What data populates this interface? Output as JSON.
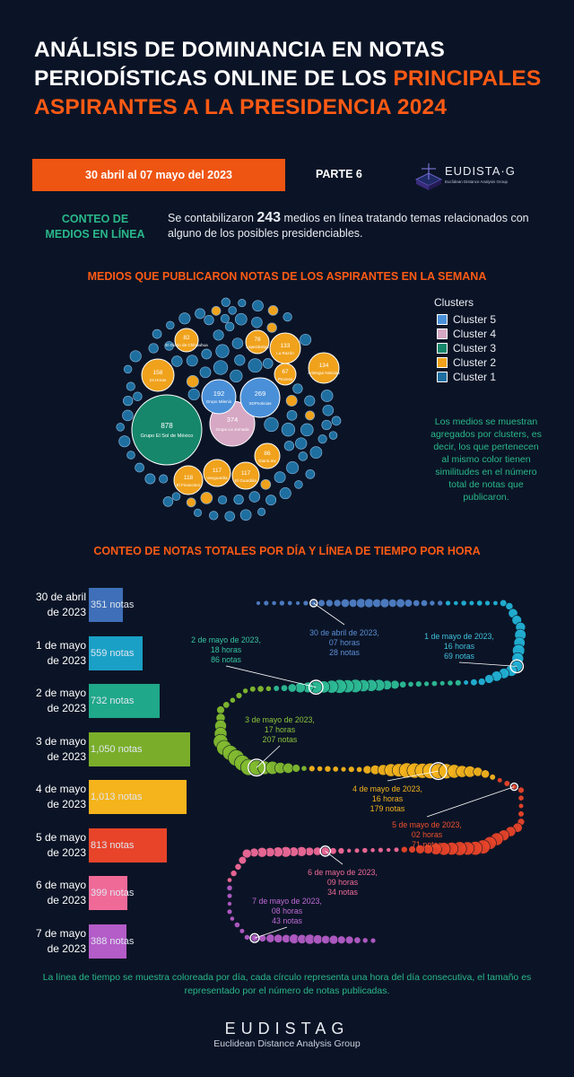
{
  "header": {
    "title_line1": "ANÁLISIS DE DOMINANCIA EN NOTAS",
    "title_line2_white": "PERIODÍSTICAS ONLINE DE LOS ",
    "title_line2_orange": "PRINCIPALES",
    "title_line3": "ASPIRANTES A LA PRESIDENCIA 2024",
    "date_range": "30 abril al 07 mayo del 2023",
    "part": "PARTE 6",
    "logo_name": "EUDISTA·G",
    "logo_sub": "Euclidean Distance Analysis Group"
  },
  "conteo": {
    "heading": "CONTEO DE MEDIOS EN LÍNEA",
    "text_before": "Se contabilizaron ",
    "count": "243",
    "text_after": " medios en línea tratando temas relacionados con alguno de los posibles presidenciables."
  },
  "colors": {
    "cluster1": "#1e6fa0",
    "cluster2": "#f0a21c",
    "cluster3": "#16876b",
    "cluster4": "#d6a8c4",
    "cluster5": "#4a90d9",
    "orange": "#ff5a14",
    "green_text": "#29b88a"
  },
  "bubble_section": {
    "title": "MEDIOS QUE PUBLICARON NOTAS DE LOS ASPIRANTES EN LA SEMANA",
    "legend_title": "Clusters",
    "legend": [
      {
        "label": "Cluster 5",
        "color": "#4a90d9"
      },
      {
        "label": "Cluster 4",
        "color": "#d6a8c4"
      },
      {
        "label": "Cluster 3",
        "color": "#16876b"
      },
      {
        "label": "Cluster 2",
        "color": "#f0a21c"
      },
      {
        "label": "Cluster 1",
        "color": "#1e6fa0"
      }
    ],
    "note": "Los medios se muestran agregados por clusters, es decir, los que pertenecen al mismo color tienen similitudes en el número total de notas que publicaron."
  },
  "timeline_section": {
    "title": "CONTEO DE NOTAS TOTALES POR DÍA Y LÍNEA DE TIEMPO POR HORA",
    "note": "La línea de tiempo se muestra coloreada por día, cada círculo representa una hora del día consecutiva, el tamaño es representado por el número de notas publicadas."
  },
  "footer": {
    "brand": "EUDISTAG",
    "brand_sub": "Euclidean Distance Analysis Group"
  },
  "chart_data": [
    {
      "type": "bubble",
      "title": "MEDIOS QUE PUBLICARON NOTAS DE LOS ASPIRANTES EN LA SEMANA",
      "series": [
        {
          "name": "Grupo El Sol de México",
          "value": 878,
          "cluster": 3
        },
        {
          "name": "Grupo La Jornada",
          "value": 374,
          "cluster": 4
        },
        {
          "name": "SDPnoticias",
          "value": 269,
          "cluster": 5
        },
        {
          "name": "Grupo Milenio",
          "value": 192,
          "cluster": 5
        },
        {
          "name": "24 Horas",
          "value": 158,
          "cluster": 2
        },
        {
          "name": "Aristegui Noticias",
          "value": 134,
          "cluster": 2
        },
        {
          "name": "La Razón",
          "value": 133,
          "cluster": 2
        },
        {
          "name": "El Financiero",
          "value": 118,
          "cluster": 2
        },
        {
          "name": "Vanguardia",
          "value": 117,
          "cluster": 2
        },
        {
          "name": "El Guardián",
          "value": 117,
          "cluster": 2
        },
        {
          "name": "Diario.mx",
          "value": 86,
          "cluster": 2
        },
        {
          "name": "El Diario de Chihuahua",
          "value": 82,
          "cluster": 2
        },
        {
          "name": "Lopezdoriga",
          "value": 78,
          "cluster": 2
        },
        {
          "name": "Proceso",
          "value": 67,
          "cluster": 2
        }
      ]
    },
    {
      "type": "bar",
      "orientation": "horizontal",
      "categories": [
        "30 de abril de 2023",
        "1 de mayo de 2023",
        "2 de mayo de 2023",
        "3 de mayo de 2023",
        "4 de mayo de 2023",
        "5 de mayo de 2023",
        "6 de mayo de 2023",
        "7 de mayo de 2023"
      ],
      "values": [
        351,
        559,
        732,
        1050,
        1013,
        813,
        399,
        388
      ],
      "value_labels": [
        "351 notas",
        "559 notas",
        "732 notas",
        "1,050 notas",
        "1,013 notas",
        "813 notas",
        "399 notas",
        "388 notas"
      ],
      "colors": [
        "#3f6fb8",
        "#1aa0c6",
        "#1fa889",
        "#7aae2a",
        "#f5b41c",
        "#e8442a",
        "#f06a98",
        "#b45cc8"
      ],
      "label_lines": [
        [
          "30 de abril",
          "de 2023"
        ],
        [
          "1 de mayo",
          "de 2023"
        ],
        [
          "2 de mayo",
          "de 2023"
        ],
        [
          "3 de mayo",
          "de 2023"
        ],
        [
          "4 de mayo",
          "de 2023"
        ],
        [
          "5 de mayo",
          "de 2023"
        ],
        [
          "6 de mayo",
          "de 2023"
        ],
        [
          "7 de mayo",
          "de 2023"
        ]
      ]
    },
    {
      "type": "timeline",
      "annotations": [
        {
          "lines": [
            "30 de abril de 2023,",
            "07 horas",
            "28 notas"
          ],
          "day": 0,
          "color": "#5b8ed6"
        },
        {
          "lines": [
            "1 de mayo de 2023,",
            "16 horas",
            "69 notas"
          ],
          "day": 1,
          "color": "#3fc0dc"
        },
        {
          "lines": [
            "2 de mayo de 2023,",
            "18 horas",
            "86 notas"
          ],
          "day": 2,
          "color": "#35c4a0"
        },
        {
          "lines": [
            "3 de mayo de 2023,",
            "17 horas",
            "207 notas"
          ],
          "day": 3,
          "color": "#8cc43a"
        },
        {
          "lines": [
            "4 de mayo de 2023,",
            "16 horas",
            "179 notas"
          ],
          "day": 4,
          "color": "#f5b41c"
        },
        {
          "lines": [
            "5 de mayo de 2023,",
            "02 horas",
            "71 notas"
          ],
          "day": 5,
          "color": "#f0502e"
        },
        {
          "lines": [
            "6 de mayo de 2023,",
            "09 horas",
            "34 notas"
          ],
          "day": 6,
          "color": "#f06a98"
        },
        {
          "lines": [
            "7 de mayo de 2023,",
            "08 horas",
            "43 notas"
          ],
          "day": 7,
          "color": "#c06ad6"
        }
      ],
      "day_colors": [
        "#4f7fc6",
        "#22b3d6",
        "#2dbd96",
        "#82bb30",
        "#f5b41c",
        "#e8442a",
        "#f06a98",
        "#b45cc8"
      ]
    }
  ]
}
